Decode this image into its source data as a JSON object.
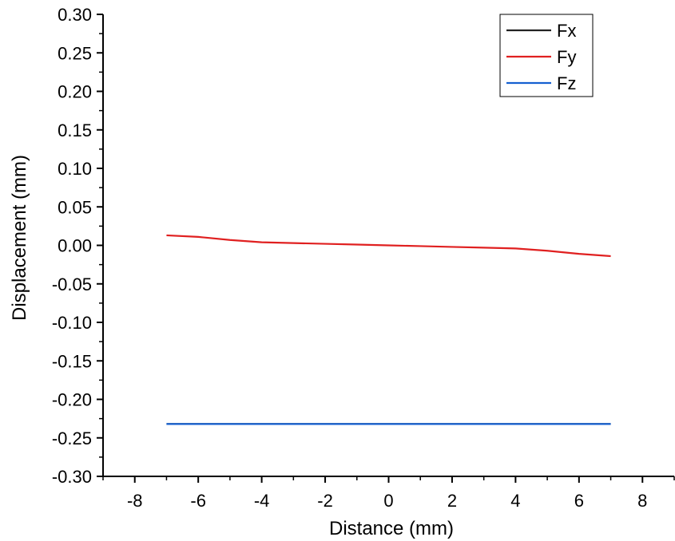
{
  "chart_data": {
    "type": "line",
    "title": "",
    "xlabel": "Distance (mm)",
    "ylabel": "Displacement (mm)",
    "xlim": [
      -9,
      9
    ],
    "ylim": [
      -0.3,
      0.3
    ],
    "x_ticks": [
      -8,
      -6,
      -4,
      -2,
      0,
      2,
      4,
      6,
      8
    ],
    "x_tick_labels": [
      "-8",
      "-6",
      "-4",
      "-2",
      "0",
      "2",
      "4",
      "6",
      "8"
    ],
    "y_ticks": [
      0.3,
      0.25,
      0.2,
      0.15,
      0.1,
      0.05,
      0.0,
      -0.05,
      -0.1,
      -0.15,
      -0.2,
      -0.25,
      -0.3
    ],
    "y_tick_labels": [
      "0.30",
      "0.25",
      "0.20",
      "0.15",
      "0.10",
      "0.05",
      "0.00",
      "-0.05",
      "-0.10",
      "-0.15",
      "-0.20",
      "-0.25",
      "-0.30"
    ],
    "grid": false,
    "legend_position": "top-right",
    "series": [
      {
        "name": "Fx",
        "color": "#222222",
        "x": [
          -7,
          7
        ],
        "y": [
          -0.232,
          -0.232
        ]
      },
      {
        "name": "Fy",
        "color": "#e02020",
        "x": [
          -7,
          -6,
          -5,
          -4,
          -3,
          -2,
          -1,
          0,
          1,
          2,
          3,
          4,
          5,
          6,
          7
        ],
        "y": [
          0.013,
          0.011,
          0.007,
          0.004,
          0.003,
          0.002,
          0.001,
          0.0,
          -0.001,
          -0.002,
          -0.003,
          -0.004,
          -0.007,
          -0.011,
          -0.014
        ]
      },
      {
        "name": "Fz",
        "color": "#1560d0",
        "x": [
          -7,
          7
        ],
        "y": [
          -0.232,
          -0.232
        ]
      }
    ]
  }
}
